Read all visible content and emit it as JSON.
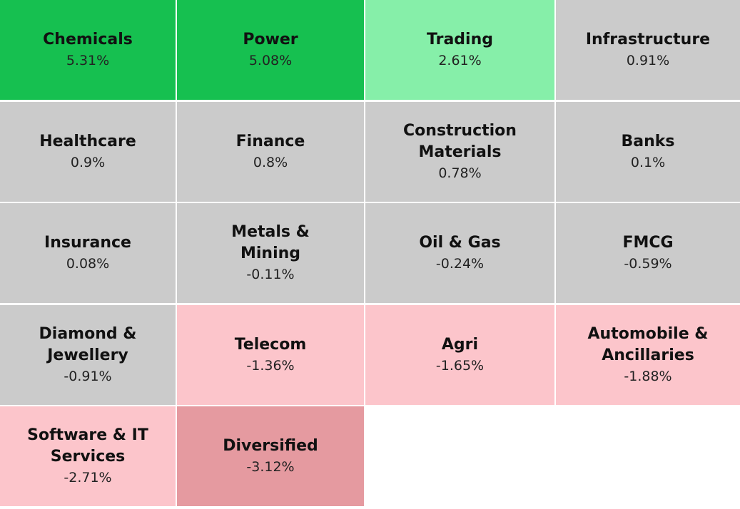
{
  "tiles": [
    {
      "name_lines": [
        "Chemicals"
      ],
      "change": "5.31%",
      "color": "#16c050"
    },
    {
      "name_lines": [
        "Power"
      ],
      "change": "5.08%",
      "color": "#16c050"
    },
    {
      "name_lines": [
        "Trading"
      ],
      "change": "2.61%",
      "color": "#86efa9"
    },
    {
      "name_lines": [
        "Infrastructure"
      ],
      "change": "0.91%",
      "color": "#cbcbcb"
    },
    {
      "name_lines": [
        "Healthcare"
      ],
      "change": "0.9%",
      "color": "#cbcbcb"
    },
    {
      "name_lines": [
        "Finance"
      ],
      "change": "0.8%",
      "color": "#cbcbcb"
    },
    {
      "name_lines": [
        "Construction",
        "Materials"
      ],
      "change": "0.78%",
      "color": "#cbcbcb"
    },
    {
      "name_lines": [
        "Banks"
      ],
      "change": "0.1%",
      "color": "#cbcbcb"
    },
    {
      "name_lines": [
        "Insurance"
      ],
      "change": "0.08%",
      "color": "#cbcbcb"
    },
    {
      "name_lines": [
        "Metals &",
        "Mining"
      ],
      "change": "-0.11%",
      "color": "#cbcbcb"
    },
    {
      "name_lines": [
        "Oil & Gas"
      ],
      "change": "-0.24%",
      "color": "#cbcbcb"
    },
    {
      "name_lines": [
        "FMCG"
      ],
      "change": "-0.59%",
      "color": "#cbcbcb"
    },
    {
      "name_lines": [
        "Diamond &",
        "Jewellery"
      ],
      "change": "-0.91%",
      "color": "#cbcbcb"
    },
    {
      "name_lines": [
        "Telecom"
      ],
      "change": "-1.36%",
      "color": "#fcc5cb"
    },
    {
      "name_lines": [
        "Agri"
      ],
      "change": "-1.65%",
      "color": "#fcc5cb"
    },
    {
      "name_lines": [
        "Automobile &",
        "Ancillaries"
      ],
      "change": "-1.88%",
      "color": "#fcc5cb"
    },
    {
      "name_lines": [
        "Software & IT",
        "Services"
      ],
      "change": "-2.71%",
      "color": "#fcc5cb"
    },
    {
      "name_lines": [
        "Diversified"
      ],
      "change": "-3.12%",
      "color": "#e59aa0"
    }
  ]
}
